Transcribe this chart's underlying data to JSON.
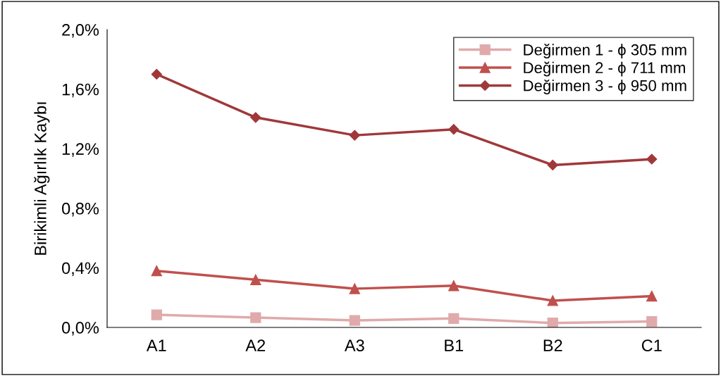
{
  "chart_data": {
    "type": "line",
    "ylabel": "Birikimli Ağırlık Kaybı",
    "categories": [
      "A1",
      "A2",
      "A3",
      "B1",
      "B2",
      "C1"
    ],
    "series": [
      {
        "name": "Değirmen 1 - ϕ 305 mm",
        "color": "#e0aaaa",
        "marker": "square",
        "values": [
          0.085,
          0.066,
          0.047,
          0.06,
          0.03,
          0.04
        ]
      },
      {
        "name": "Değirmen 2 - ϕ 711 mm",
        "color": "#c0504d",
        "marker": "triangle",
        "values": [
          0.38,
          0.32,
          0.26,
          0.28,
          0.18,
          0.21
        ]
      },
      {
        "name": "Değirmen 3 - ϕ 950 mm",
        "color": "#a0383a",
        "marker": "diamond",
        "values": [
          1.7,
          1.41,
          1.29,
          1.33,
          1.09,
          1.13
        ]
      }
    ],
    "ylim": [
      0,
      2.0
    ],
    "yticks": [
      {
        "value": 0,
        "label": "0,0%"
      },
      {
        "value": 0.4,
        "label": "0,4%"
      },
      {
        "value": 0.8,
        "label": "0,8%"
      },
      {
        "value": 1.2,
        "label": "1,2%"
      },
      {
        "value": 1.6,
        "label": "1,6%"
      },
      {
        "value": 2.0,
        "label": "2,0%"
      }
    ],
    "grid": false,
    "legend": "top right",
    "line_style": "solid"
  }
}
